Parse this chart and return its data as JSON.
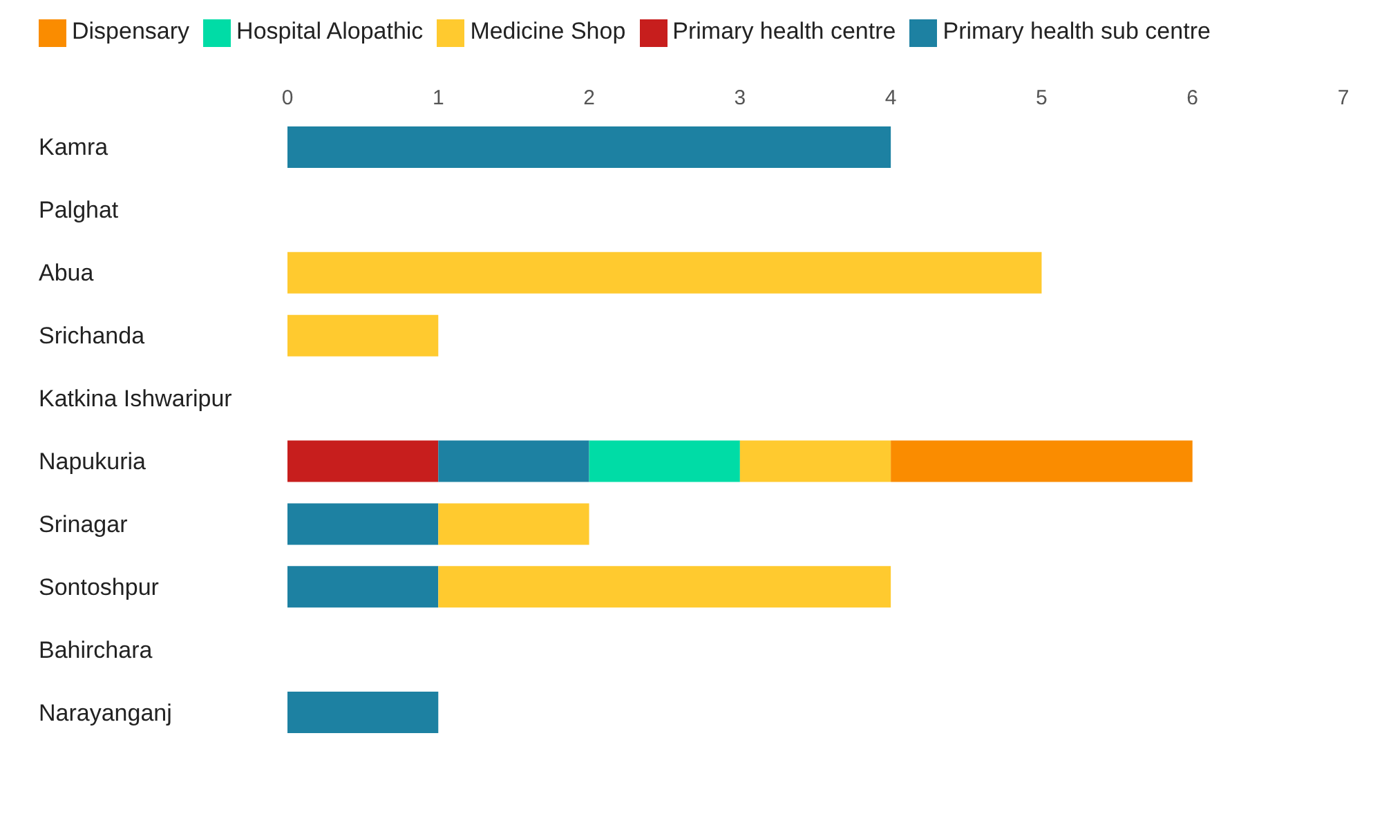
{
  "chart_data": {
    "type": "bar",
    "orientation": "horizontal",
    "stacked": true,
    "categories": [
      "Kamra",
      "Palghat",
      "Abua",
      "Srichanda",
      "Katkina Ishwaripur",
      "Napukuria",
      "Srinagar",
      "Sontoshpur",
      "Bahirchara",
      "Narayanganj"
    ],
    "series": [
      {
        "name": "Primary health centre",
        "color": "#c71e1d",
        "values": [
          0,
          0,
          0,
          0,
          0,
          1,
          0,
          0,
          0,
          0
        ]
      },
      {
        "name": "Primary health sub centre",
        "color": "#1d81a2",
        "values": [
          4,
          0,
          0,
          0,
          0,
          1,
          1,
          1,
          0,
          1
        ]
      },
      {
        "name": "Hospital Alopathic",
        "color": "#00dca6",
        "values": [
          0,
          0,
          0,
          0,
          0,
          1,
          0,
          0,
          0,
          0
        ]
      },
      {
        "name": "Medicine Shop",
        "color": "#ffca2f",
        "values": [
          0,
          0,
          5,
          1,
          0,
          1,
          1,
          3,
          0,
          0
        ]
      },
      {
        "name": "Dispensary",
        "color": "#fa8c00",
        "values": [
          0,
          0,
          0,
          0,
          0,
          2,
          0,
          0,
          0,
          0
        ]
      }
    ],
    "xlim": [
      0,
      7
    ],
    "xticks": [
      0,
      1,
      2,
      3,
      4,
      5,
      6,
      7
    ],
    "grid": false,
    "legend": "top left"
  }
}
